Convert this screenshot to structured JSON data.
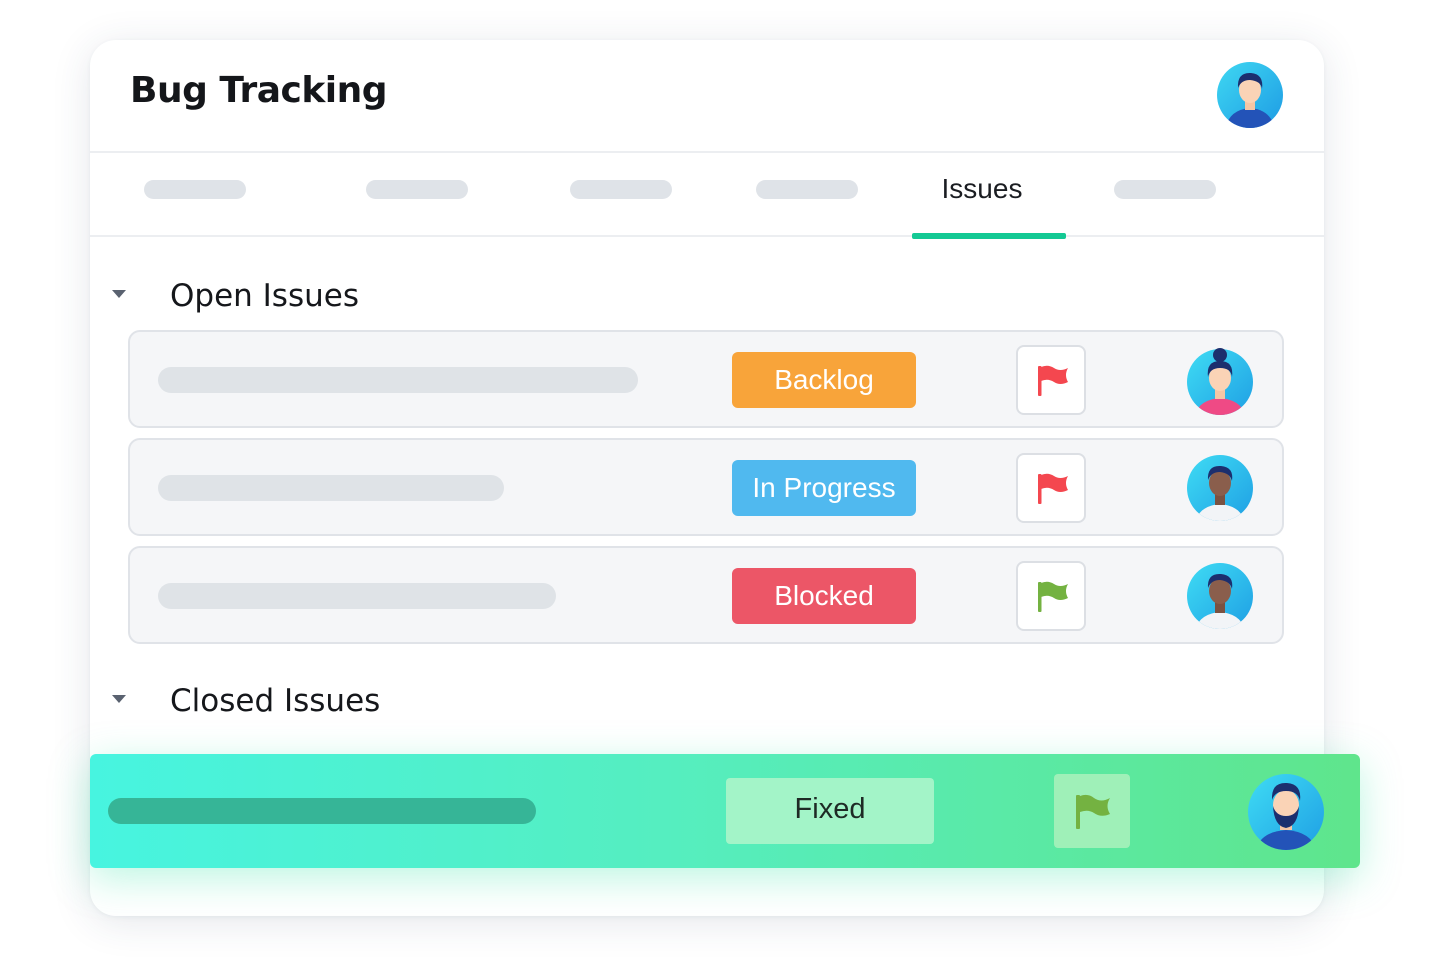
{
  "app": {
    "title": "Bug Tracking"
  },
  "tabs": {
    "active_label": "Issues"
  },
  "sections": {
    "open_label": "Open Issues",
    "closed_label": "Closed Issues"
  },
  "open_issues": [
    {
      "status": "Backlog",
      "status_color": "#f8a43a",
      "flag_color": "#f4474f",
      "flag_icon": "red-flag-icon",
      "avatar": "woman-avatar-icon"
    },
    {
      "status": "In Progress",
      "status_color": "#50b9ef",
      "flag_color": "#f4474f",
      "flag_icon": "red-flag-icon",
      "avatar": "man-avatar-icon"
    },
    {
      "status": "Blocked",
      "status_color": "#ec5667",
      "flag_color": "#74b241",
      "flag_icon": "green-flag-icon",
      "avatar": "man-avatar-icon"
    }
  ],
  "closed_issues": [
    {
      "status": "Fixed",
      "flag_color": "#74b241",
      "flag_icon": "green-flag-icon",
      "avatar": "bearded-man-avatar-icon"
    }
  ],
  "colors": {
    "accent": "#14c994",
    "closed_gradient_start": "#47f4e0",
    "closed_gradient_end": "#5fe58c"
  }
}
